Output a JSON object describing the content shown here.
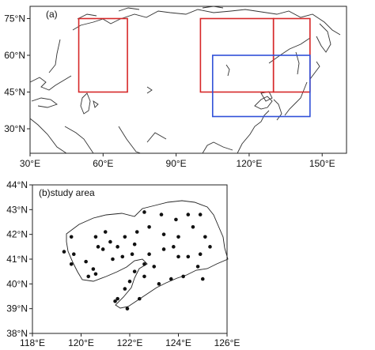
{
  "panel_a": {
    "label": "(a)",
    "x_ticks": [
      "30°E",
      "60°E",
      "90°E",
      "120°E",
      "150°E"
    ],
    "y_ticks": [
      "75°N",
      "60°N",
      "45°N",
      "30°N"
    ],
    "extent": {
      "lon": [
        30,
        160
      ],
      "lat": [
        20,
        80
      ]
    },
    "regions": [
      {
        "color": "#d62728",
        "lon": [
          50,
          70
        ],
        "lat": [
          45,
          75
        ]
      },
      {
        "color": "#d62728",
        "lon": [
          100,
          130
        ],
        "lat": [
          45,
          75
        ]
      },
      {
        "color": "#d62728",
        "lon": [
          130,
          145
        ],
        "lat": [
          45,
          75
        ]
      },
      {
        "color": "#3050d8",
        "lon": [
          105,
          145
        ],
        "lat": [
          35,
          60
        ]
      }
    ]
  },
  "panel_b": {
    "label": "(b)study area",
    "x_ticks": [
      "118°E",
      "120°E",
      "122°E",
      "124°E",
      "126°E"
    ],
    "y_ticks": [
      "44°N",
      "43°N",
      "42°N",
      "41°N",
      "40°N",
      "39°N",
      "38°N"
    ],
    "extent": {
      "lon": [
        118,
        126
      ],
      "lat": [
        38,
        44
      ]
    },
    "stations": [
      [
        119.6,
        41.9
      ],
      [
        119.3,
        41.3
      ],
      [
        119.7,
        41.2
      ],
      [
        119.6,
        40.8
      ],
      [
        120.2,
        40.9
      ],
      [
        120.7,
        41.5
      ],
      [
        120.9,
        41.4
      ],
      [
        120.5,
        40.6
      ],
      [
        120.3,
        40.3
      ],
      [
        120.6,
        40.4
      ],
      [
        120.6,
        41.9
      ],
      [
        121.0,
        42.1
      ],
      [
        121.2,
        41.7
      ],
      [
        121.5,
        41.5
      ],
      [
        121.8,
        41.9
      ],
      [
        121.3,
        41.0
      ],
      [
        121.7,
        41.1
      ],
      [
        122.1,
        41.2
      ],
      [
        122.2,
        41.6
      ],
      [
        122.3,
        42.1
      ],
      [
        122.8,
        42.3
      ],
      [
        122.6,
        42.9
      ],
      [
        123.3,
        42.8
      ],
      [
        123.4,
        42.0
      ],
      [
        123.9,
        42.6
      ],
      [
        124.4,
        42.8
      ],
      [
        124.9,
        42.8
      ],
      [
        124.6,
        42.3
      ],
      [
        124.0,
        41.9
      ],
      [
        125.1,
        41.9
      ],
      [
        123.4,
        41.4
      ],
      [
        123.8,
        41.5
      ],
      [
        124.0,
        41.1
      ],
      [
        124.4,
        41.1
      ],
      [
        124.9,
        41.2
      ],
      [
        125.3,
        41.5
      ],
      [
        122.8,
        41.2
      ],
      [
        122.6,
        40.8
      ],
      [
        123.0,
        40.7
      ],
      [
        122.2,
        40.5
      ],
      [
        122.0,
        40.1
      ],
      [
        121.8,
        39.8
      ],
      [
        121.5,
        39.4
      ],
      [
        122.6,
        40.3
      ],
      [
        123.2,
        40.0
      ],
      [
        123.7,
        40.2
      ],
      [
        124.2,
        40.3
      ],
      [
        124.8,
        40.7
      ],
      [
        125.0,
        40.2
      ],
      [
        121.9,
        39.0
      ],
      [
        121.4,
        39.3
      ],
      [
        122.4,
        39.4
      ]
    ]
  }
}
